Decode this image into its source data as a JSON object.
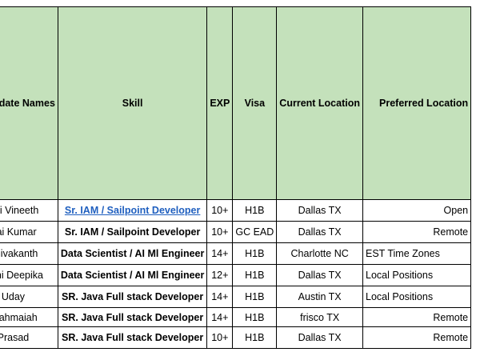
{
  "table": {
    "headers": [
      "Candidate Names",
      "Skill",
      "EXP",
      "Visa",
      "Current Location",
      "Preferred Location"
    ],
    "rows": [
      {
        "name": "Sai Vineeth",
        "skill": "Sr. IAM / Sailpoint Developer",
        "exp": "10+",
        "visa": "H1B",
        "location": "Dallas TX",
        "preferred": "Open"
      },
      {
        "name": "Sai Kumar",
        "skill": "Sr. IAM / Sailpoint Developer",
        "exp": "10+",
        "visa": "GC EAD",
        "location": "Dallas TX",
        "preferred": "Remote"
      },
      {
        "name": "Shivakanth",
        "skill": "Data Scientist / AI Ml Engineer",
        "exp": "14+",
        "visa": "H1B",
        "location": "Charlotte NC",
        "preferred": "EST Time Zones"
      },
      {
        "name": "Rani Deepika",
        "skill": "Data Scientist / AI Ml Engineer",
        "exp": "12+",
        "visa": "H1B",
        "location": "Dallas TX",
        "preferred": "Local Positions"
      },
      {
        "name": "Uday",
        "skill": "SR. Java Full stack Developer",
        "exp": "14+",
        "visa": "H1B",
        "location": "Austin TX",
        "preferred": "Local Positions"
      },
      {
        "name": "Brahmaiah",
        "skill": "SR. Java Full stack Developer",
        "exp": "14+",
        "visa": "H1B",
        "location": "frisco TX",
        "preferred": "Remote"
      },
      {
        "name": "Prasad",
        "skill": "SR. Java Full stack Developer",
        "exp": "10+",
        "visa": "H1B",
        "location": "Dallas TX",
        "preferred": "Remote"
      }
    ]
  },
  "colors": {
    "header_bg": "#c4e1bb",
    "link": "#1f5fbf",
    "border": "#000000"
  }
}
